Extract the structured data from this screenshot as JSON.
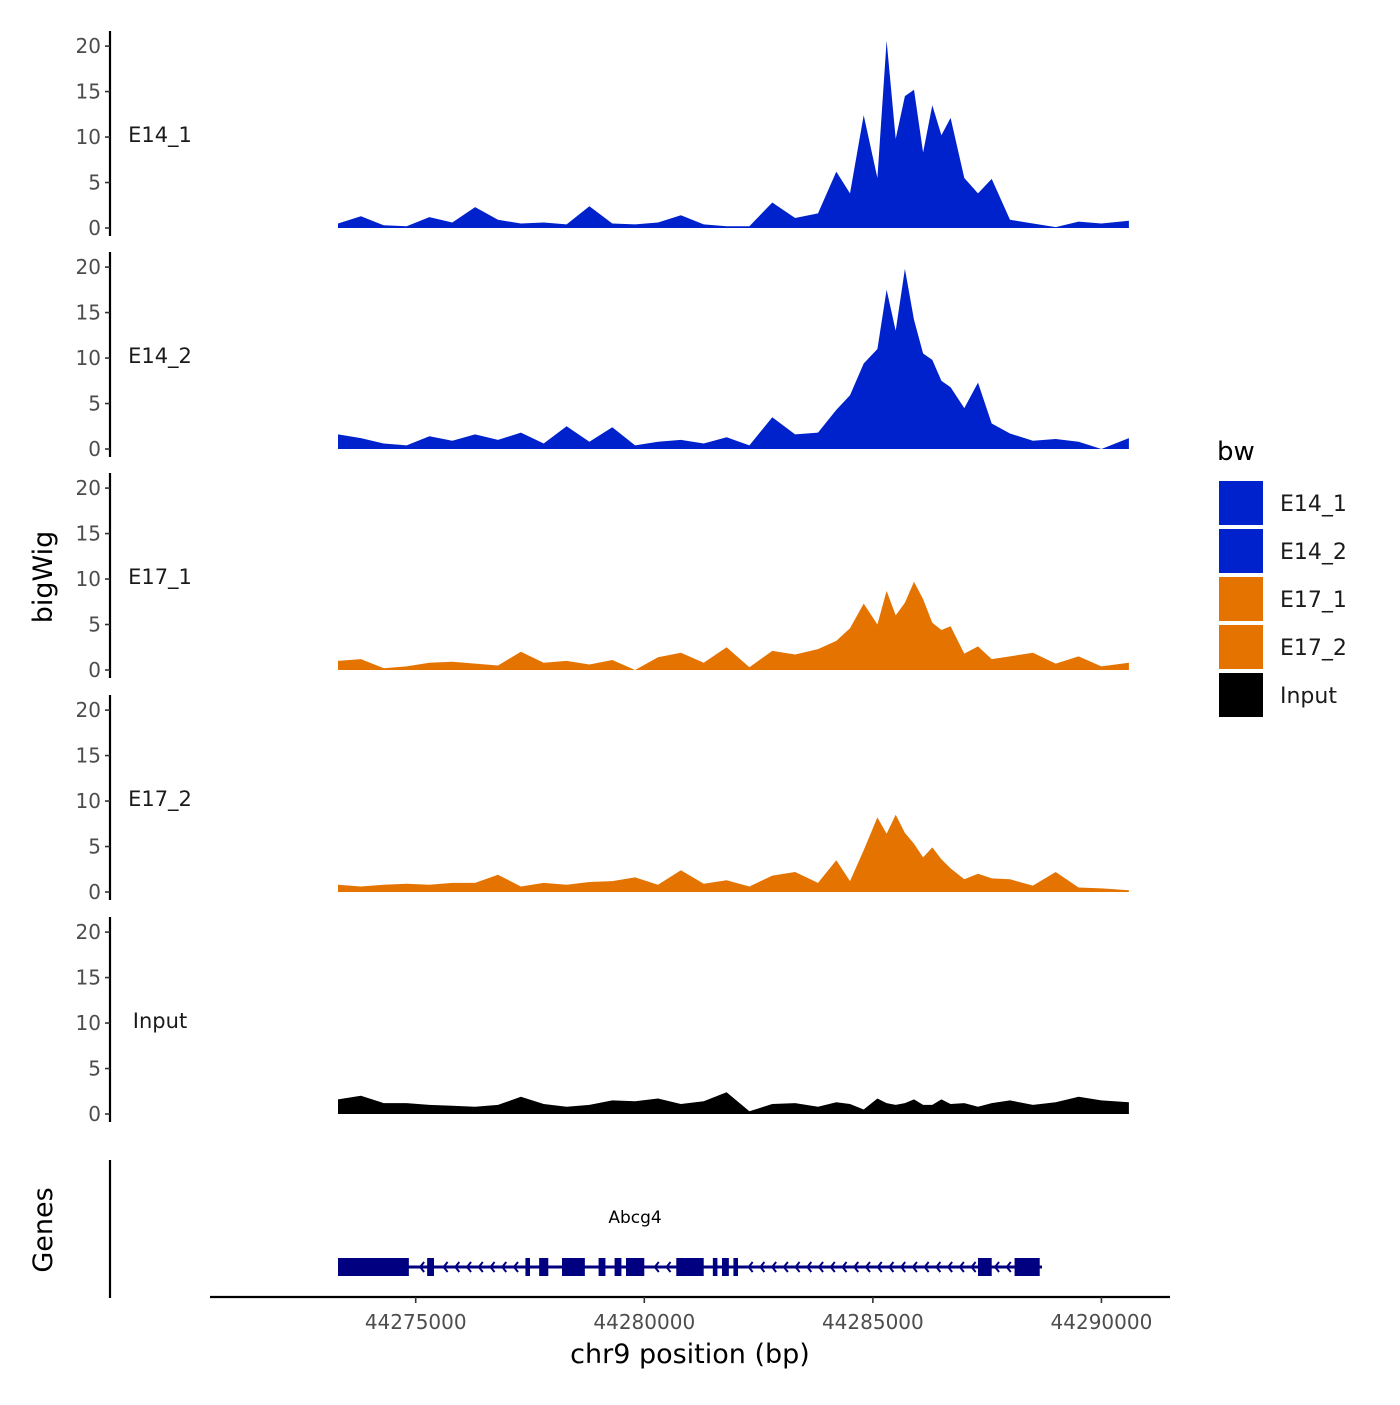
{
  "chart_data": {
    "type": "area",
    "title": "",
    "xlabel": "chr9 position (bp)",
    "ylabel": "bigWig",
    "genes_label": "Genes",
    "xlim": [
      44270500,
      44291500
    ],
    "ylim": [
      0,
      21
    ],
    "y_ticks": [
      "0",
      "5",
      "10",
      "15",
      "20"
    ],
    "x_ticks": [
      {
        "value": 44275000,
        "label": "44275000"
      },
      {
        "value": 44280000,
        "label": "44280000"
      },
      {
        "value": 44285000,
        "label": "44285000"
      },
      {
        "value": 44290000,
        "label": "44290000"
      }
    ],
    "x": [
      44273300,
      44273800,
      44274300,
      44274800,
      44275300,
      44275800,
      44276300,
      44276800,
      44277300,
      44277800,
      44278300,
      44278800,
      44279300,
      44279800,
      44280300,
      44280800,
      44281300,
      44281800,
      44282300,
      44282800,
      44283300,
      44283800,
      44284200,
      44284500,
      44284800,
      44285100,
      44285300,
      44285500,
      44285700,
      44285900,
      44286100,
      44286300,
      44286500,
      44286700,
      44287000,
      44287300,
      44287600,
      44288000,
      44288500,
      44289000,
      44289500,
      44290000,
      44290600
    ],
    "series": [
      {
        "name": "E14_1",
        "color": "#0022CC",
        "values": [
          0.5,
          1.3,
          0.3,
          0.2,
          1.2,
          0.6,
          2.3,
          0.9,
          0.5,
          0.6,
          0.4,
          2.4,
          0.5,
          0.4,
          0.6,
          1.4,
          0.4,
          0.2,
          0.2,
          2.8,
          1.1,
          1.6,
          6.2,
          3.8,
          12.4,
          5.5,
          20.6,
          9.8,
          14.5,
          15.2,
          8.3,
          13.5,
          10.2,
          12.1,
          5.5,
          3.8,
          5.4,
          0.9,
          0.5,
          0.1,
          0.7,
          0.5,
          0.8
        ]
      },
      {
        "name": "E14_2",
        "color": "#0022CC",
        "values": [
          1.6,
          1.2,
          0.6,
          0.4,
          1.4,
          0.9,
          1.6,
          1.0,
          1.8,
          0.6,
          2.5,
          0.8,
          2.4,
          0.4,
          0.8,
          1.0,
          0.6,
          1.3,
          0.4,
          3.5,
          1.6,
          1.8,
          4.3,
          5.9,
          9.4,
          11.0,
          17.5,
          13.0,
          19.8,
          14.2,
          10.5,
          9.8,
          7.5,
          6.8,
          4.5,
          7.3,
          2.8,
          1.7,
          0.9,
          1.1,
          0.8,
          0.0,
          1.2
        ]
      },
      {
        "name": "E17_1",
        "color": "#E57300",
        "values": [
          1.0,
          1.2,
          0.2,
          0.4,
          0.8,
          0.9,
          0.7,
          0.5,
          2.0,
          0.8,
          1.0,
          0.6,
          1.1,
          0.0,
          1.4,
          1.9,
          0.8,
          2.5,
          0.3,
          2.1,
          1.7,
          2.3,
          3.2,
          4.6,
          7.3,
          5.0,
          8.7,
          6.0,
          7.4,
          9.7,
          7.8,
          5.2,
          4.4,
          4.8,
          1.8,
          2.6,
          1.2,
          1.5,
          1.9,
          0.7,
          1.5,
          0.4,
          0.8
        ]
      },
      {
        "name": "E17_2",
        "color": "#E57300",
        "values": [
          0.8,
          0.6,
          0.8,
          0.9,
          0.8,
          1.0,
          1.0,
          1.9,
          0.6,
          1.0,
          0.8,
          1.1,
          1.2,
          1.6,
          0.8,
          2.4,
          0.9,
          1.3,
          0.6,
          1.8,
          2.2,
          1.0,
          3.5,
          1.2,
          4.6,
          8.2,
          6.4,
          8.5,
          6.5,
          5.3,
          3.8,
          4.9,
          3.6,
          2.6,
          1.4,
          2.0,
          1.5,
          1.4,
          0.7,
          2.2,
          0.5,
          0.4,
          0.2
        ]
      },
      {
        "name": "Input",
        "color": "#000000",
        "values": [
          1.6,
          2.0,
          1.2,
          1.2,
          1.0,
          0.9,
          0.8,
          1.0,
          1.9,
          1.1,
          0.8,
          1.0,
          1.5,
          1.4,
          1.7,
          1.1,
          1.4,
          2.4,
          0.3,
          1.1,
          1.2,
          0.8,
          1.3,
          1.1,
          0.5,
          1.7,
          1.2,
          1.0,
          1.2,
          1.6,
          1.0,
          1.0,
          1.6,
          1.1,
          1.2,
          0.8,
          1.2,
          1.5,
          1.0,
          1.3,
          1.9,
          1.5,
          1.3
        ]
      }
    ],
    "legend": {
      "title": "bw",
      "position": "right",
      "entries": [
        {
          "label": "E14_1",
          "color": "#0022CC"
        },
        {
          "label": "E14_2",
          "color": "#0022CC"
        },
        {
          "label": "E17_1",
          "color": "#E57300"
        },
        {
          "label": "E17_2",
          "color": "#E57300"
        },
        {
          "label": "Input",
          "color": "#000000"
        }
      ]
    },
    "gene": {
      "name": "Abcg4",
      "color": "#000080",
      "start": 44273300,
      "end": 44288700,
      "strand": "-",
      "exons": [
        [
          44273300,
          44274850
        ],
        [
          44275250,
          44275400
        ],
        [
          44277400,
          44277500
        ],
        [
          44277700,
          44277900
        ],
        [
          44278200,
          44278700
        ],
        [
          44279000,
          44279150
        ],
        [
          44279350,
          44279500
        ],
        [
          44279600,
          44280000
        ],
        [
          44280700,
          44281300
        ],
        [
          44281500,
          44281600
        ],
        [
          44281700,
          44281850
        ],
        [
          44281950,
          44282050
        ],
        [
          44287300,
          44287600
        ],
        [
          44288100,
          44288650
        ]
      ]
    }
  }
}
